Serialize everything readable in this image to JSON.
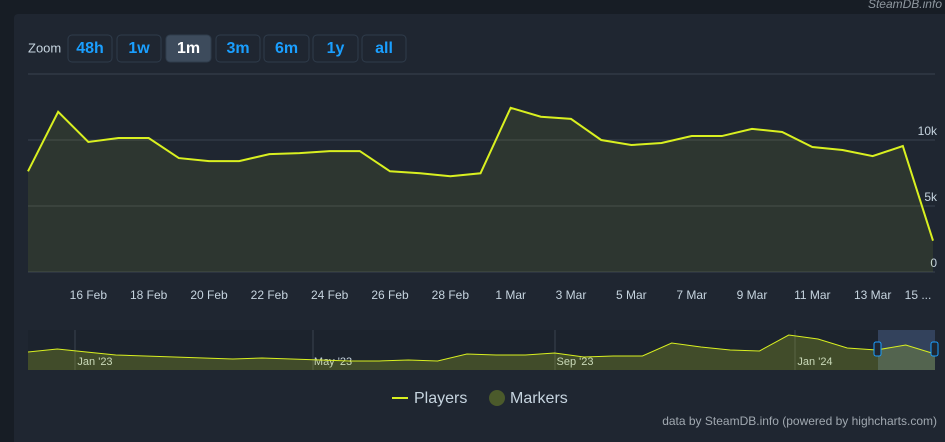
{
  "site": "SteamDB.info",
  "zoom": {
    "label": "Zoom",
    "buttons": [
      "48h",
      "1w",
      "1m",
      "3m",
      "6m",
      "1y",
      "all"
    ],
    "active": 2
  },
  "chart_data": {
    "type": "line",
    "categories": [
      null,
      null,
      "16 Feb",
      null,
      "18 Feb",
      null,
      "20 Feb",
      null,
      "22 Feb",
      null,
      "24 Feb",
      null,
      "26 Feb",
      null,
      "28 Feb",
      null,
      "1 Mar",
      null,
      "3 Mar",
      null,
      "5 Mar",
      null,
      "7 Mar",
      null,
      "9 Mar",
      null,
      "11 Mar",
      null,
      "13 Mar",
      null,
      "15 ..."
    ],
    "series": [
      {
        "name": "Players",
        "color": "#d9f020",
        "values": [
          7630,
          12140,
          9850,
          10150,
          10150,
          8630,
          8400,
          8400,
          8930,
          9010,
          9160,
          9160,
          7630,
          7480,
          7250,
          7480,
          12440,
          11760,
          11600,
          10000,
          9620,
          9770,
          10300,
          10300,
          10840,
          10610,
          9470,
          9240,
          8780,
          9540,
          2370
        ]
      },
      {
        "name": "Markers",
        "color": "#4b5a2b"
      }
    ],
    "ylim": [
      0,
      15000
    ],
    "yticks": [
      0,
      {
        "value": 5000,
        "label": "5k"
      },
      {
        "value": 10000,
        "label": "10k"
      }
    ],
    "grid": true,
    "navigator": {
      "labels": [
        "Jan '23",
        "May '23",
        "Sep '23",
        "Jan '24"
      ],
      "ylim": [
        0,
        20000
      ],
      "values": [
        9000,
        10500,
        9000,
        7500,
        7000,
        6500,
        6000,
        5500,
        6000,
        5500,
        5000,
        4500,
        4500,
        5000,
        4500,
        8000,
        7500,
        7500,
        8500,
        6500,
        7000,
        7000,
        13500,
        11500,
        10000,
        9500,
        17500,
        15500,
        11000,
        10000,
        12500,
        8000
      ]
    },
    "credit": "data by SteamDB.info (powered by highcharts.com)"
  }
}
